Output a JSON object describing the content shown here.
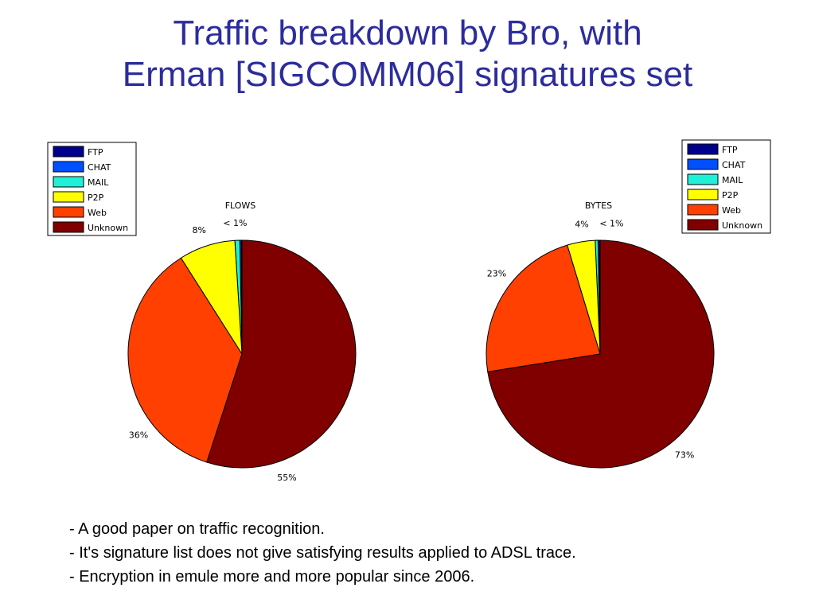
{
  "slide": {
    "title_lines": [
      "Traffic breakdown by Bro, with",
      "Erman [SIGCOMM06] signatures set"
    ],
    "bullets": [
      "- A good paper on traffic recognition.",
      "- It's signature list does not give satisfying results applied to ADSL trace.",
      "- Encryption in emule more and more popular since 2006."
    ]
  },
  "chart_data": [
    {
      "type": "pie",
      "title": "FLOWS",
      "legend": "top-left",
      "slices": [
        {
          "name": "FTP",
          "value": 0.1,
          "color": "#00008f"
        },
        {
          "name": "CHAT",
          "value": 0.2,
          "color": "#0050ff"
        },
        {
          "name": "MAIL",
          "value": 0.7,
          "color": "#20f0d8"
        },
        {
          "name": "P2P",
          "value": 8,
          "color": "#ffff00"
        },
        {
          "name": "Web",
          "value": 36,
          "color": "#ff4000"
        },
        {
          "name": "Unknown",
          "value": 55,
          "color": "#800000"
        }
      ],
      "labels": [
        {
          "text": "< 1%",
          "angle": -3
        },
        {
          "text": "8%",
          "angle": -19
        },
        {
          "text": "36%",
          "angle": -128
        },
        {
          "text": "55%",
          "angle": 160
        }
      ]
    },
    {
      "type": "pie",
      "title": "BYTES",
      "legend": "top-right",
      "slices": [
        {
          "name": "FTP",
          "value": 0.1,
          "color": "#00008f"
        },
        {
          "name": "CHAT",
          "value": 0.2,
          "color": "#0050ff"
        },
        {
          "name": "MAIL",
          "value": 0.4,
          "color": "#20f0d8"
        },
        {
          "name": "P2P",
          "value": 4,
          "color": "#ffff00"
        },
        {
          "name": "Web",
          "value": 23,
          "color": "#ff4000"
        },
        {
          "name": "Unknown",
          "value": 73,
          "color": "#800000"
        }
      ],
      "labels": [
        {
          "text": "< 1%",
          "angle": 5
        },
        {
          "text": "4%",
          "angle": -8
        },
        {
          "text": "23%",
          "angle": -52
        },
        {
          "text": "73%",
          "angle": 140
        }
      ]
    }
  ]
}
